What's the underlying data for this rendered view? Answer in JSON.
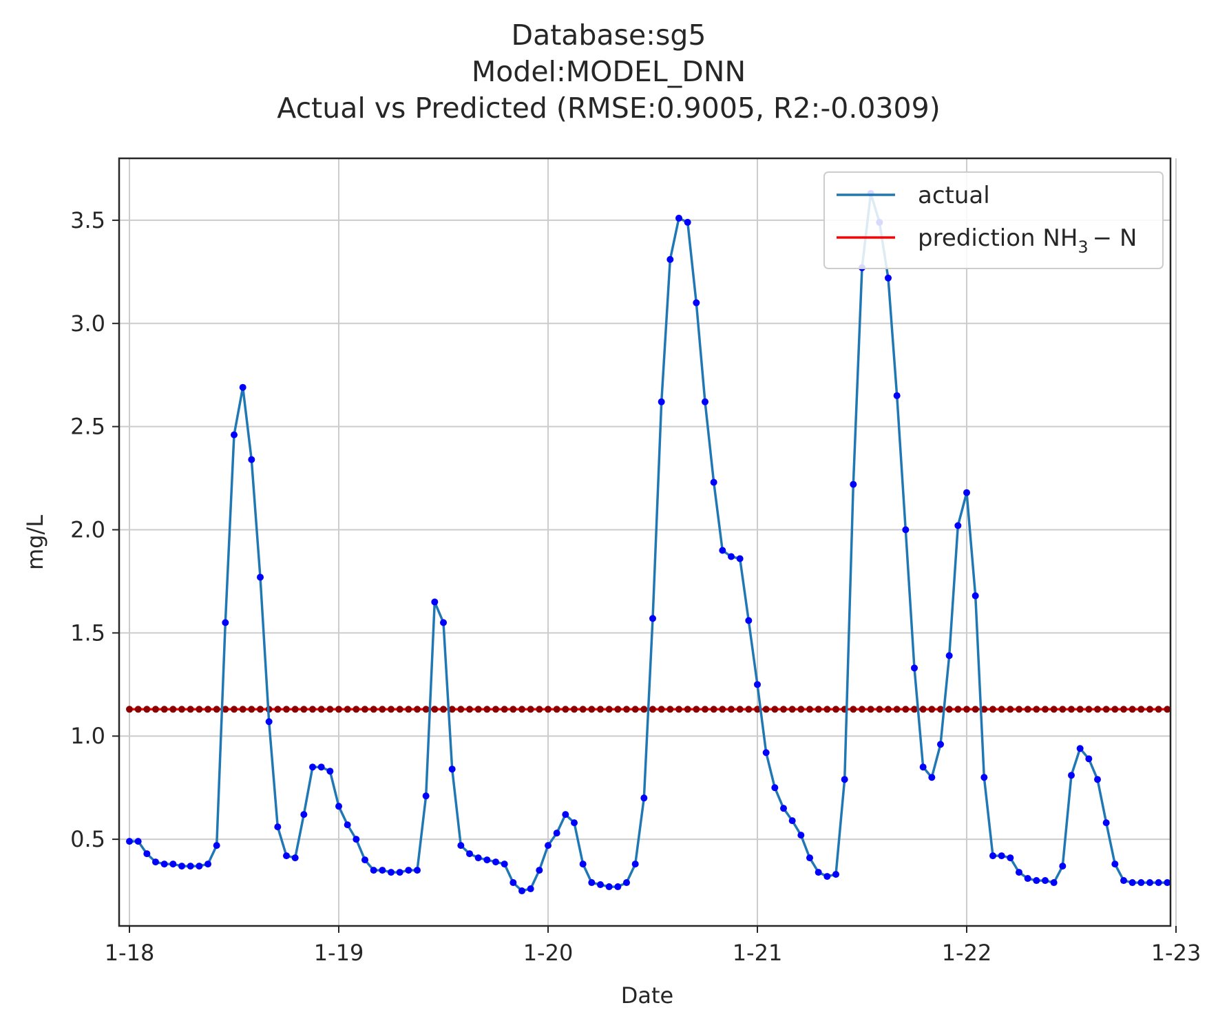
{
  "chart_data": {
    "type": "line",
    "title_lines": [
      "Database:sg5",
      "Model:MODEL_DNN",
      "Actual vs Predicted (RMSE:0.9005, R2:-0.0309)"
    ],
    "xlabel": "Date",
    "ylabel": "mg/L",
    "x_range": [
      "1-18",
      "1-23"
    ],
    "ylim": [
      0.08,
      3.8
    ],
    "x_ticks": [
      "1-18",
      "1-19",
      "1-20",
      "1-21",
      "1-22",
      "1-23"
    ],
    "y_ticks": [
      "0.5",
      "1.0",
      "1.5",
      "2.0",
      "2.5",
      "3.0",
      "3.5"
    ],
    "y_tick_values": [
      0.5,
      1.0,
      1.5,
      2.0,
      2.5,
      3.0,
      3.5
    ],
    "grid": true,
    "legend_position": "top-right",
    "series": [
      {
        "name": "actual",
        "color": "#1f77b4",
        "marker_color": "#0000ff",
        "values": [
          0.49,
          0.49,
          0.43,
          0.39,
          0.38,
          0.38,
          0.37,
          0.37,
          0.37,
          0.38,
          0.47,
          1.55,
          2.46,
          2.69,
          2.34,
          1.77,
          1.07,
          0.56,
          0.42,
          0.41,
          0.62,
          0.85,
          0.85,
          0.83,
          0.66,
          0.57,
          0.5,
          0.4,
          0.35,
          0.35,
          0.34,
          0.34,
          0.35,
          0.35,
          0.71,
          1.65,
          1.55,
          0.84,
          0.47,
          0.43,
          0.41,
          0.4,
          0.39,
          0.38,
          0.29,
          0.25,
          0.26,
          0.35,
          0.47,
          0.53,
          0.62,
          0.58,
          0.38,
          0.29,
          0.28,
          0.27,
          0.27,
          0.29,
          0.38,
          0.7,
          1.57,
          2.62,
          3.31,
          3.51,
          3.49,
          3.1,
          2.62,
          2.23,
          1.9,
          1.87,
          1.86,
          1.56,
          1.25,
          0.92,
          0.75,
          0.65,
          0.59,
          0.52,
          0.41,
          0.34,
          0.32,
          0.33,
          0.79,
          2.22,
          3.27,
          3.63,
          3.49,
          3.22,
          2.65,
          2.0,
          1.33,
          0.85,
          0.8,
          0.96,
          1.39,
          2.02,
          2.18,
          1.68,
          0.8,
          0.42,
          0.42,
          0.41,
          0.34,
          0.31,
          0.3,
          0.3,
          0.29,
          0.37,
          0.81,
          0.94,
          0.89,
          0.79,
          0.58,
          0.38,
          0.3,
          0.29,
          0.29,
          0.29,
          0.29,
          0.29
        ]
      },
      {
        "name_main": "prediction NH",
        "name_sub": "3",
        "name_tail": "− N",
        "color": "#ff0000",
        "marker_color": "#8b0000",
        "constant_value": 1.13
      }
    ]
  }
}
